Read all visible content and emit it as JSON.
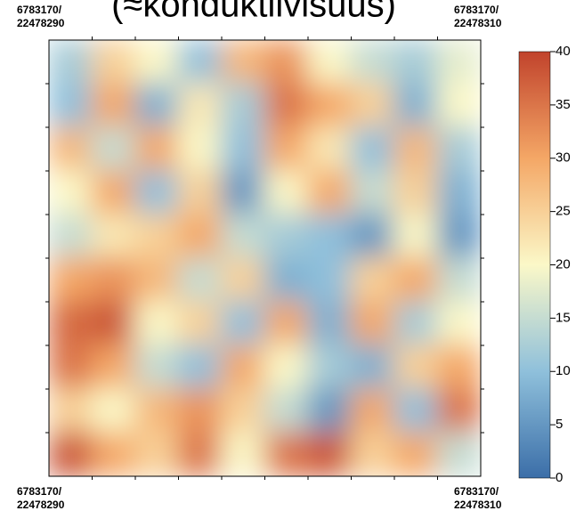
{
  "chart_data": {
    "type": "heatmap",
    "title": "(≈konduktiivisuus)",
    "corner_labels": {
      "top_left": [
        "6783170/",
        "22478290"
      ],
      "top_right": [
        "6783170/",
        "22478310"
      ],
      "bottom_left": [
        "6783170/",
        "22478290"
      ],
      "bottom_right": [
        "6783170/",
        "22478310"
      ]
    },
    "values": [
      [
        12,
        25,
        20,
        10,
        28,
        32,
        20,
        15,
        12,
        18
      ],
      [
        10,
        30,
        8,
        22,
        12,
        35,
        30,
        25,
        8,
        20
      ],
      [
        28,
        15,
        30,
        20,
        10,
        30,
        22,
        10,
        28,
        12
      ],
      [
        20,
        30,
        10,
        25,
        5,
        20,
        30,
        15,
        25,
        8
      ],
      [
        15,
        22,
        25,
        30,
        15,
        12,
        10,
        5,
        20,
        5
      ],
      [
        30,
        32,
        28,
        15,
        25,
        8,
        10,
        25,
        30,
        15
      ],
      [
        36,
        38,
        20,
        25,
        10,
        30,
        8,
        30,
        12,
        20
      ],
      [
        35,
        30,
        15,
        10,
        30,
        20,
        12,
        8,
        25,
        30
      ],
      [
        25,
        20,
        28,
        32,
        25,
        15,
        5,
        30,
        10,
        35
      ],
      [
        38,
        30,
        25,
        35,
        20,
        35,
        38,
        25,
        30,
        15
      ]
    ],
    "clim": [
      0,
      40
    ],
    "cticks": [
      0,
      5,
      10,
      15,
      20,
      25,
      30,
      35,
      40
    ],
    "colormap": [
      "#3b6ea8",
      "#8fc0db",
      "#fbf8c8",
      "#f4a766",
      "#c1432c"
    ]
  }
}
